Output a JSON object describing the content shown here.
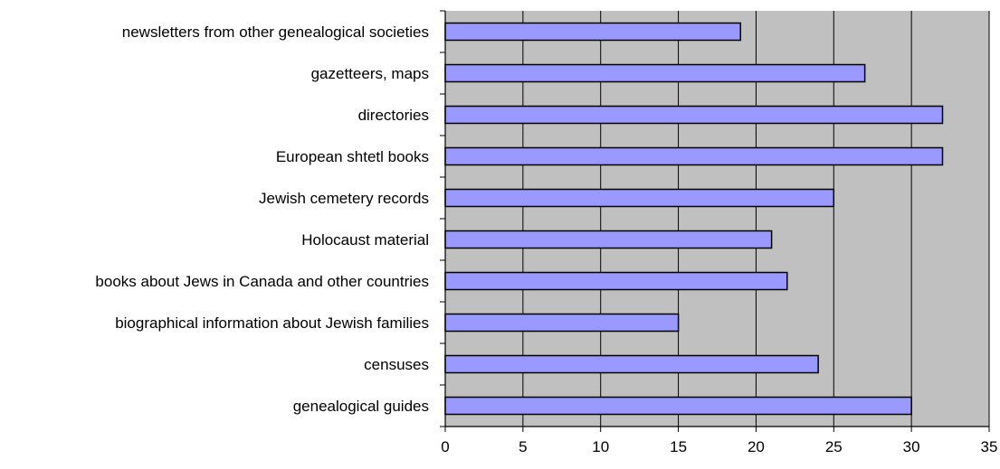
{
  "chart_data": {
    "type": "bar",
    "orientation": "horizontal",
    "categories": [
      "newsletters from other genealogical societies",
      "gazetteers, maps",
      "directories",
      "European shtetl books",
      "Jewish cemetery records",
      "Holocaust material",
      "books about Jews in Canada and other countries",
      "biographical information about Jewish families",
      "censuses",
      "genealogical guides"
    ],
    "values": [
      19,
      27,
      32,
      32,
      25,
      21,
      22,
      15,
      24,
      30
    ],
    "xlim": [
      0,
      35
    ],
    "x_ticks": [
      "0",
      "5",
      "10",
      "15",
      "20",
      "25",
      "30",
      "35"
    ],
    "grid": "vertical",
    "title": "",
    "xlabel": "",
    "ylabel": "",
    "colors": {
      "bar_fill": "#9999ff",
      "bar_stroke": "#000000",
      "plot_background": "#c0c0c0",
      "gridline": "#000000"
    }
  }
}
